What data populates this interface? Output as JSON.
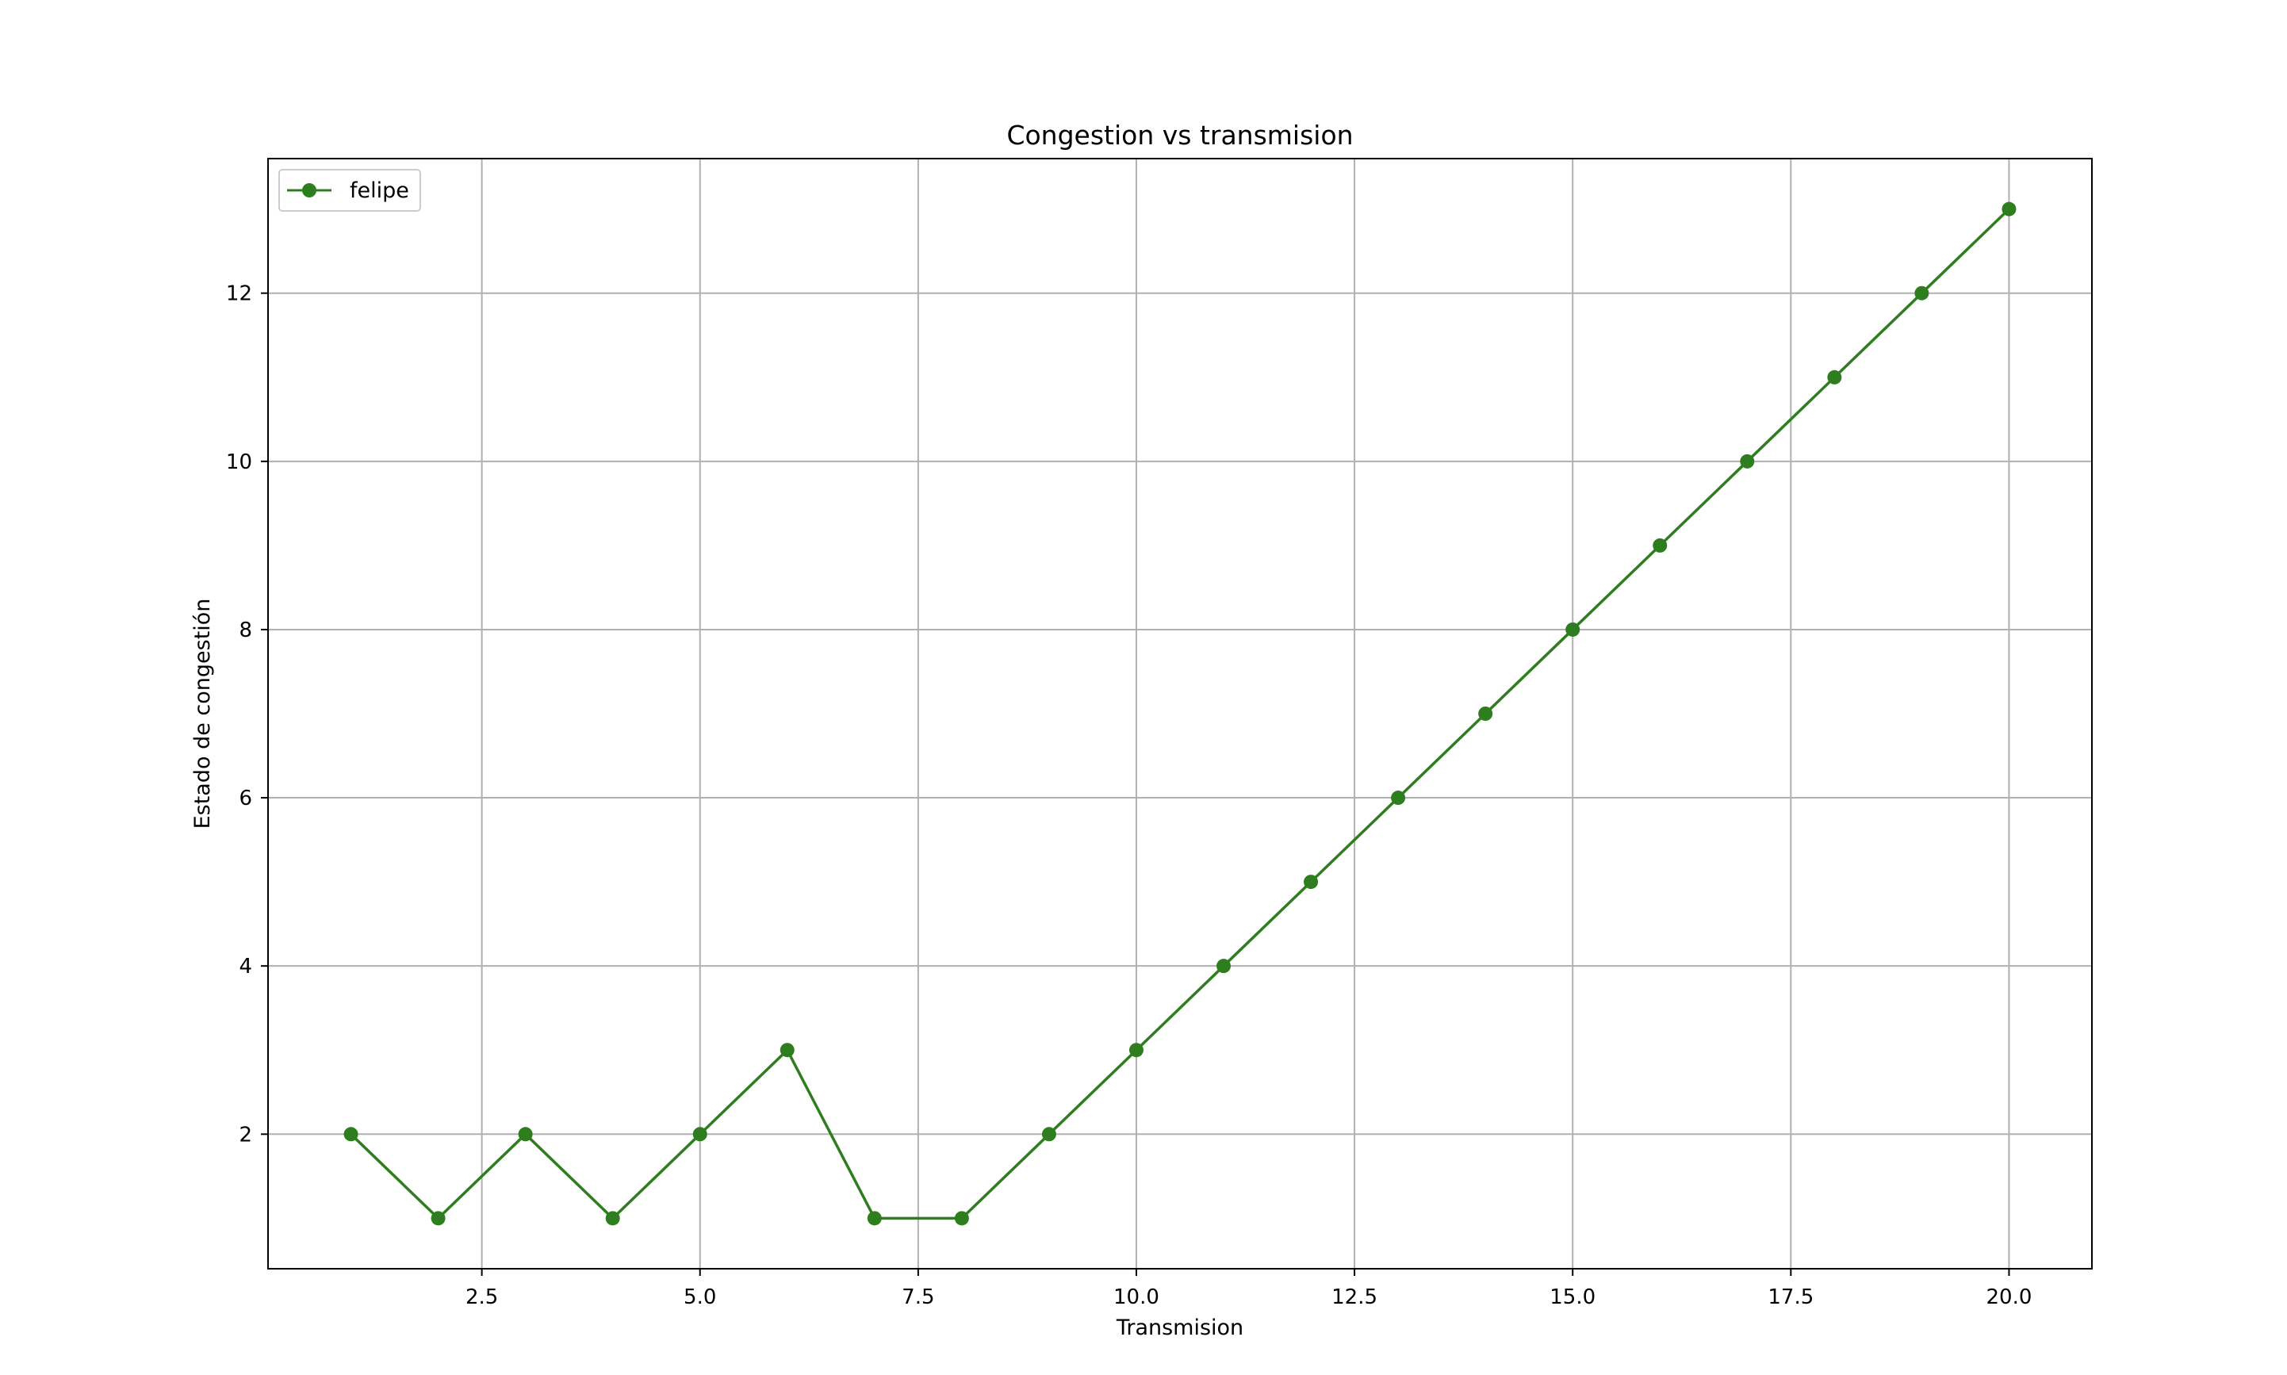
{
  "chart_data": {
    "type": "line",
    "title": "Congestion vs transmision",
    "xlabel": "Transmision",
    "ylabel": "Estado de congestión",
    "xlim": [
      0.05,
      20.95
    ],
    "ylim": [
      0.4,
      13.6
    ],
    "xticks": [
      2.5,
      5.0,
      7.5,
      10.0,
      12.5,
      15.0,
      17.5,
      20.0
    ],
    "xtick_labels": [
      "2.5",
      "5.0",
      "7.5",
      "10.0",
      "12.5",
      "15.0",
      "17.5",
      "20.0"
    ],
    "yticks": [
      2,
      4,
      6,
      8,
      10,
      12
    ],
    "ytick_labels": [
      "2",
      "4",
      "6",
      "8",
      "10",
      "12"
    ],
    "grid": true,
    "legend_position": "top-left",
    "series": [
      {
        "name": "felipe",
        "color": "#2e7d1e",
        "marker": "circle",
        "x": [
          1,
          2,
          3,
          4,
          5,
          6,
          7,
          8,
          9,
          10,
          11,
          12,
          13,
          14,
          15,
          16,
          17,
          18,
          19,
          20
        ],
        "y": [
          2,
          1,
          2,
          1,
          2,
          3,
          1,
          1,
          2,
          3,
          4,
          5,
          6,
          7,
          8,
          9,
          10,
          11,
          12,
          13
        ]
      }
    ]
  }
}
